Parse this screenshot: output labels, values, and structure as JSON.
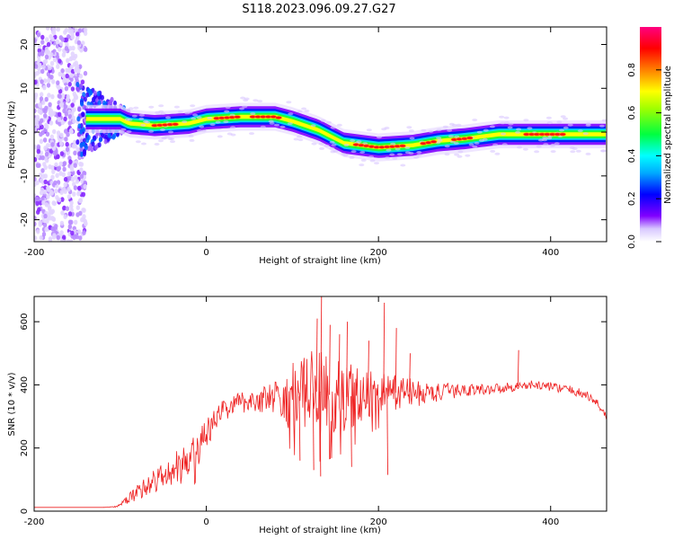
{
  "figure_title": "S118.2023.096.09.27.G27",
  "chart_data": [
    {
      "type": "heatmap",
      "xlabel": "Height of straight line (km)",
      "ylabel": "Frequency (Hz)",
      "xlim": [
        -200,
        465
      ],
      "ylim": [
        -25,
        24
      ],
      "xticks": [
        -200,
        0,
        200,
        400
      ],
      "yticks": [
        -20,
        -10,
        0,
        10,
        20
      ],
      "colorbar": {
        "label": "Normalized spectral amplitude",
        "range": [
          0,
          1
        ],
        "ticks": [
          0.0,
          0.2,
          0.4,
          0.6,
          0.8
        ],
        "tick_labels": [
          "0.0",
          "0.2",
          "0.4",
          "0.6",
          "0.8"
        ],
        "colormap": [
          "#ffffff",
          "#8000ff",
          "#0000ff",
          "#00ffff",
          "#00ff00",
          "#ffff00",
          "#ff8000",
          "#ff0000",
          "#ff0080"
        ]
      },
      "ridge_center_hz": [
        {
          "x": -140,
          "y": 3
        },
        {
          "x": -100,
          "y": 3
        },
        {
          "x": -90,
          "y": 2
        },
        {
          "x": -60,
          "y": 1.5
        },
        {
          "x": -20,
          "y": 2
        },
        {
          "x": 0,
          "y": 3
        },
        {
          "x": 40,
          "y": 3.5
        },
        {
          "x": 80,
          "y": 3.5
        },
        {
          "x": 100,
          "y": 2.5
        },
        {
          "x": 130,
          "y": 0.5
        },
        {
          "x": 160,
          "y": -2.5
        },
        {
          "x": 200,
          "y": -3.5
        },
        {
          "x": 240,
          "y": -3
        },
        {
          "x": 270,
          "y": -2
        },
        {
          "x": 300,
          "y": -1.5
        },
        {
          "x": 340,
          "y": -0.5
        },
        {
          "x": 400,
          "y": -0.5
        },
        {
          "x": 465,
          "y": -0.5
        }
      ],
      "noise_region_x": [
        -200,
        -140
      ]
    },
    {
      "type": "line",
      "xlabel": "Height of straight line (km)",
      "ylabel": "SNR (10 * v/v)",
      "xlim": [
        -200,
        465
      ],
      "ylim": [
        0,
        680
      ],
      "xticks": [
        -200,
        0,
        200,
        400
      ],
      "yticks": [
        0,
        200,
        400,
        600
      ],
      "series": [
        {
          "color": "#ee2222",
          "x": [
            -200,
            -150,
            -120,
            -105,
            -100,
            -90,
            -80,
            -70,
            -60,
            -50,
            -40,
            -30,
            -20,
            -10,
            0,
            10,
            20,
            30,
            40,
            50,
            60,
            70,
            80,
            90,
            100,
            110,
            120,
            130,
            140,
            150,
            160,
            170,
            180,
            190,
            200,
            210,
            220,
            230,
            240,
            250,
            260,
            270,
            280,
            290,
            300,
            320,
            340,
            360,
            380,
            400,
            420,
            440,
            455,
            465
          ],
          "y": [
            12,
            12,
            12,
            14,
            20,
            40,
            60,
            80,
            95,
            110,
            125,
            140,
            160,
            200,
            240,
            290,
            320,
            335,
            345,
            350,
            350,
            355,
            360,
            355,
            360,
            365,
            370,
            380,
            370,
            365,
            360,
            365,
            370,
            375,
            375,
            375,
            375,
            380,
            375,
            370,
            375,
            375,
            380,
            380,
            385,
            385,
            390,
            395,
            400,
            395,
            385,
            370,
            340,
            300
          ],
          "jitter": [
            0,
            0,
            0,
            2,
            5,
            15,
            25,
            35,
            40,
            50,
            55,
            60,
            65,
            60,
            50,
            40,
            35,
            35,
            35,
            35,
            40,
            45,
            55,
            80,
            110,
            130,
            140,
            140,
            130,
            120,
            110,
            100,
            90,
            80,
            70,
            60,
            55,
            50,
            45,
            40,
            35,
            30,
            25,
            22,
            20,
            18,
            16,
            15,
            14,
            14,
            14,
            14,
            14,
            14
          ]
        }
      ],
      "spikes": [
        {
          "x": 133,
          "y": 680
        },
        {
          "x": 128,
          "y": 610
        },
        {
          "x": 143,
          "y": 590
        },
        {
          "x": 154,
          "y": 560
        },
        {
          "x": 163,
          "y": 600
        },
        {
          "x": 206,
          "y": 660
        },
        {
          "x": 188,
          "y": 540
        },
        {
          "x": 220,
          "y": 580
        },
        {
          "x": 124,
          "y": 130
        },
        {
          "x": 132,
          "y": 110
        },
        {
          "x": 210,
          "y": 115
        },
        {
          "x": 168,
          "y": 140
        },
        {
          "x": 108,
          "y": 160
        },
        {
          "x": 362,
          "y": 510
        },
        {
          "x": 236,
          "y": 500
        }
      ]
    }
  ]
}
